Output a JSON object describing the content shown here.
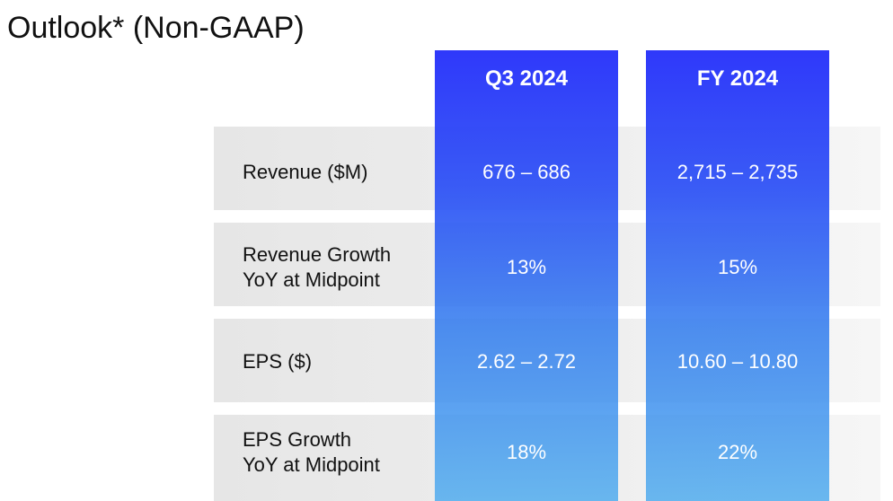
{
  "title": "Outlook* (Non-GAAP)",
  "columns": [
    {
      "label": "Q3 2024"
    },
    {
      "label": "FY 2024"
    }
  ],
  "rows": [
    {
      "label_lines": [
        "Revenue ($M)"
      ],
      "values": [
        "676 – 686",
        "2,715 – 2,735"
      ]
    },
    {
      "label_lines": [
        "Revenue Growth",
        "YoY at Midpoint"
      ],
      "values": [
        "13%",
        "15%"
      ]
    },
    {
      "label_lines": [
        "EPS ($)"
      ],
      "values": [
        "2.62 – 2.72",
        "10.60 – 10.80"
      ]
    },
    {
      "label_lines": [
        "EPS Growth",
        "YoY at Midpoint"
      ],
      "values": [
        "18%",
        "22%"
      ]
    }
  ],
  "colors": {
    "column_top": "#2832fa",
    "column_bottom": "#4baaee",
    "row_band": "#e6e6e6",
    "text_dark": "#111111",
    "text_light": "#ffffff"
  }
}
